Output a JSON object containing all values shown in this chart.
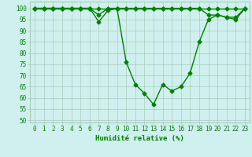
{
  "line1": {
    "x": [
      0,
      1,
      2,
      3,
      4,
      5,
      6,
      7,
      8,
      9,
      10,
      11,
      12,
      13,
      14,
      15,
      16,
      17,
      18,
      19,
      20,
      21,
      22,
      23
    ],
    "y": [
      100,
      100,
      100,
      100,
      100,
      100,
      100,
      100,
      100,
      100,
      100,
      100,
      100,
      100,
      100,
      100,
      100,
      100,
      100,
      100,
      100,
      100,
      100,
      100
    ]
  },
  "line2": {
    "x": [
      0,
      1,
      2,
      3,
      4,
      5,
      6,
      7,
      8,
      9,
      10,
      11,
      12,
      13,
      14,
      15,
      16,
      17,
      18,
      19,
      20,
      21,
      22,
      23
    ],
    "y": [
      100,
      100,
      100,
      100,
      100,
      100,
      100,
      97,
      100,
      100,
      100,
      100,
      100,
      100,
      100,
      100,
      100,
      100,
      100,
      97,
      97,
      96,
      96,
      100
    ]
  },
  "line3": {
    "x": [
      0,
      1,
      2,
      3,
      4,
      5,
      6,
      7,
      8,
      9,
      10,
      11,
      12,
      13,
      14,
      15,
      16,
      17,
      18,
      19,
      20,
      21,
      22,
      23
    ],
    "y": [
      100,
      100,
      100,
      100,
      100,
      100,
      100,
      94,
      99,
      100,
      76,
      66,
      62,
      57,
      66,
      63,
      65,
      71,
      85,
      95,
      97,
      96,
      95,
      100
    ]
  },
  "line_color": "#008000",
  "marker": "D",
  "markersize": 2.5,
  "linewidth": 1.0,
  "bg_color": "#cff0ee",
  "grid_color": "#aaccbb",
  "xlim": [
    -0.5,
    23.5
  ],
  "ylim": [
    49,
    103
  ],
  "yticks": [
    50,
    55,
    60,
    65,
    70,
    75,
    80,
    85,
    90,
    95,
    100
  ],
  "xticks": [
    0,
    1,
    2,
    3,
    4,
    5,
    6,
    7,
    8,
    9,
    10,
    11,
    12,
    13,
    14,
    15,
    16,
    17,
    18,
    19,
    20,
    21,
    22,
    23
  ],
  "xlabel": "Humidité relative (%)",
  "xlabel_fontsize": 6.5,
  "tick_fontsize": 5.5,
  "tick_color": "#008000",
  "label_color": "#008000"
}
